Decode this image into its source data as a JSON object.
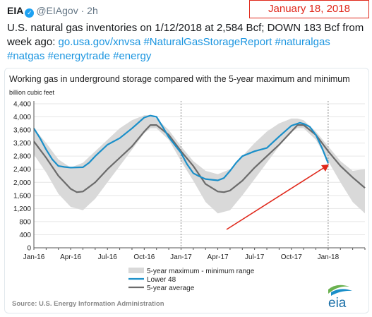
{
  "tweet": {
    "author": "EIA",
    "verified_icon": "verified-check-icon",
    "handle": "@EIAgov",
    "separator": "·",
    "time": "2h",
    "text_prefix": "U.S. natural gas inventories on 1/12/2018 at 2,584 Bcf; DOWN 183 Bcf from week ago: ",
    "url": "go.usa.gov/xnvsa",
    "hashtags": "#NaturalGasStorageReport #naturalgas #natgas #energytrade #energy"
  },
  "annotation": {
    "date_label": "January 18, 2018",
    "arrow_color": "#e0281b"
  },
  "chart_data": {
    "type": "line",
    "title": "Working gas in underground  storage compared with the 5-year maximum and minimum",
    "ylabel": "billion cubic feet",
    "ylim": [
      0,
      4400
    ],
    "yticks": [
      0,
      400,
      800,
      1200,
      1600,
      2000,
      2400,
      2800,
      3200,
      3600,
      4000,
      4400
    ],
    "ytick_labels": [
      "0",
      "400",
      "800",
      "1,200",
      "1,600",
      "2,000",
      "2,400",
      "2,800",
      "3,200",
      "3,600",
      "4,000",
      "4,400"
    ],
    "x_tick_labels": [
      "Jan-16",
      "Apr-16",
      "Jul-16",
      "Oct-16",
      "Jan-17",
      "Apr-17",
      "Jul-17",
      "Oct-17",
      "Jan-18"
    ],
    "x_tick_months": [
      0,
      3,
      6,
      9,
      12,
      15,
      18,
      21,
      24
    ],
    "year_dividers_months": [
      12,
      24
    ],
    "legend": [
      "5-year maximum - minimum range",
      "Lower 48",
      "5-year average"
    ],
    "legend_placement": "bottom-center",
    "source": "Source:  U.S. Energy Information Administration",
    "logo_text": "eia",
    "colors": {
      "range": "#d9d9d9",
      "lower48": "#1a8fc9",
      "average": "#6b6b6b",
      "grid": "#e6e6e6"
    },
    "series": [
      {
        "name": "5-year maximum - minimum range",
        "x": [
          0,
          1,
          2,
          3,
          4,
          5,
          6,
          7,
          8,
          9,
          9.5,
          10,
          11,
          12,
          13,
          14,
          15,
          16,
          17,
          18,
          19,
          20,
          21,
          21.5,
          22,
          23,
          24,
          25,
          26,
          27
        ],
        "max": [
          3650,
          3200,
          2700,
          2450,
          2600,
          2950,
          3300,
          3650,
          3900,
          4050,
          4050,
          3950,
          3600,
          3100,
          2650,
          2350,
          2250,
          2400,
          2800,
          3200,
          3550,
          3800,
          3950,
          3950,
          3900,
          3550,
          3100,
          2650,
          2350,
          2400
        ],
        "min": [
          2850,
          2300,
          1650,
          1250,
          1150,
          1500,
          2000,
          2500,
          3000,
          3500,
          3650,
          3650,
          3300,
          2650,
          2050,
          1400,
          1050,
          1150,
          1600,
          2100,
          2600,
          3100,
          3550,
          3650,
          3650,
          3300,
          2650,
          2000,
          1400,
          1050
        ]
      },
      {
        "name": "Lower 48",
        "x": [
          0,
          0.5,
          1,
          1.5,
          2,
          2.5,
          3,
          4,
          4.5,
          5,
          6,
          7,
          8,
          9,
          9.5,
          10,
          10.5,
          11,
          12,
          12.5,
          13,
          13.5,
          14,
          15,
          15.5,
          16,
          16.5,
          17,
          18,
          19,
          20,
          21,
          21.7,
          22,
          22.5,
          23,
          23.5,
          24
        ],
        "y": [
          3650,
          3350,
          3000,
          2700,
          2500,
          2470,
          2450,
          2460,
          2600,
          2800,
          3150,
          3350,
          3650,
          3980,
          4040,
          4000,
          3700,
          3380,
          2900,
          2550,
          2280,
          2180,
          2100,
          2060,
          2130,
          2350,
          2600,
          2800,
          2950,
          3050,
          3400,
          3730,
          3820,
          3790,
          3700,
          3450,
          3050,
          2584
        ]
      },
      {
        "name": "5-year average",
        "x": [
          0,
          1,
          2,
          3,
          3.5,
          4,
          5,
          6,
          7,
          8,
          9,
          9.5,
          10,
          11,
          12,
          13,
          14,
          15,
          15.5,
          16,
          17,
          18,
          19,
          20,
          21,
          21.5,
          22,
          23,
          24,
          25,
          26,
          27
        ],
        "y": [
          3250,
          2750,
          2200,
          1800,
          1700,
          1720,
          2000,
          2400,
          2750,
          3100,
          3550,
          3750,
          3750,
          3450,
          2950,
          2500,
          1950,
          1720,
          1700,
          1750,
          2050,
          2450,
          2800,
          3150,
          3550,
          3750,
          3750,
          3450,
          2950,
          2500,
          2150,
          1830
        ]
      }
    ]
  }
}
